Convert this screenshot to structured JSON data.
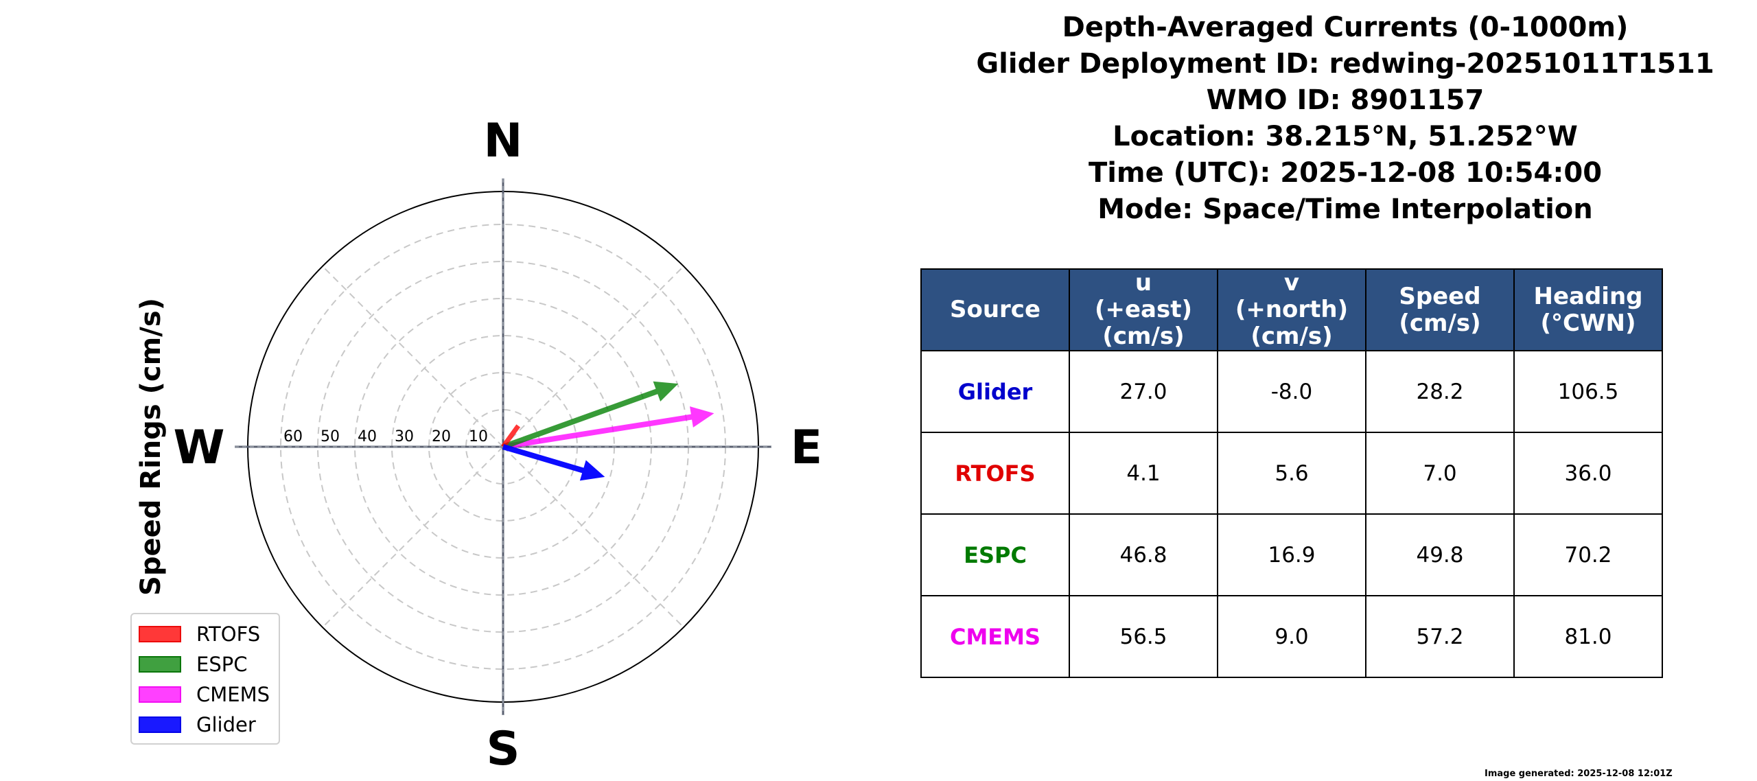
{
  "title": {
    "lines": [
      "Depth-Averaged Currents (0-1000m)",
      "Glider Deployment ID: redwing-20251011T1511",
      "WMO ID: 8901157",
      "Location: 38.215°N, 51.252°W",
      "Time (UTC): 2025-12-08 10:54:00",
      "Mode: Space/Time Interpolation"
    ]
  },
  "compass": {
    "north": "N",
    "south": "S",
    "east": "E",
    "west": "W",
    "ylabel": "Speed Rings (cm/s)",
    "ring_labels": [
      "10",
      "20",
      "30",
      "40",
      "50",
      "60"
    ]
  },
  "legend": {
    "items": [
      {
        "label": "RTOFS",
        "color": "#ff0000"
      },
      {
        "label": "ESPC",
        "color": "#008000"
      },
      {
        "label": "CMEMS",
        "color": "#ff00ff"
      },
      {
        "label": "Glider",
        "color": "#0000ff"
      }
    ]
  },
  "table": {
    "headers": [
      "Source",
      "u\n(+east)\n(cm/s)",
      "v\n(+north)\n(cm/s)",
      "Speed\n(cm/s)",
      "Heading\n(°CWN)"
    ],
    "header_bg": "#2e5182",
    "rows": [
      {
        "source": "Glider",
        "color": "#0000cc",
        "u": "27.0",
        "v": "-8.0",
        "speed": "28.2",
        "heading": "106.5"
      },
      {
        "source": "RTOFS",
        "color": "#e00000",
        "u": "4.1",
        "v": "5.6",
        "speed": "7.0",
        "heading": "36.0"
      },
      {
        "source": "ESPC",
        "color": "#007a00",
        "u": "46.8",
        "v": "16.9",
        "speed": "49.8",
        "heading": "70.2"
      },
      {
        "source": "CMEMS",
        "color": "#ee00ee",
        "u": "56.5",
        "v": "9.0",
        "speed": "57.2",
        "heading": "81.0"
      }
    ]
  },
  "footnote": "Image generated: 2025-12-08 12:01Z",
  "chart_data": {
    "type": "polar-vector",
    "title": "Depth-Averaged Currents (0-1000m)",
    "ylabel": "Speed Rings (cm/s)",
    "rings": [
      10,
      20,
      30,
      40,
      50,
      60
    ],
    "directions": [
      "N",
      "E",
      "S",
      "W"
    ],
    "series": [
      {
        "name": "Glider",
        "u": 27.0,
        "v": -8.0,
        "speed": 28.2,
        "heading": 106.5,
        "color": "#0000ff"
      },
      {
        "name": "RTOFS",
        "u": 4.1,
        "v": 5.6,
        "speed": 7.0,
        "heading": 36.0,
        "color": "#ff0000"
      },
      {
        "name": "ESPC",
        "u": 46.8,
        "v": 16.9,
        "speed": 49.8,
        "heading": 70.2,
        "color": "#008000"
      },
      {
        "name": "CMEMS",
        "u": 56.5,
        "v": 9.0,
        "speed": 57.2,
        "heading": 81.0,
        "color": "#ff00ff"
      }
    ],
    "legend_position": "lower left"
  }
}
